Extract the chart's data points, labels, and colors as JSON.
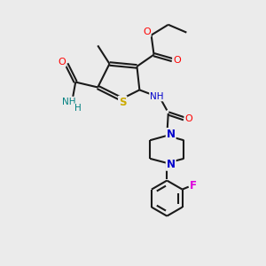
{
  "background_color": "#ebebeb",
  "bond_color": "#1a1a1a",
  "line_width": 1.5,
  "figsize": [
    3.0,
    3.0
  ],
  "dpi": 100,
  "atom_colors": {
    "O": "#ff0000",
    "N": "#0000cc",
    "S": "#ccaa00",
    "F": "#dd00dd",
    "H_teal": "#008080",
    "C": "#1a1a1a"
  },
  "xlim": [
    0,
    10
  ],
  "ylim": [
    0,
    10
  ]
}
